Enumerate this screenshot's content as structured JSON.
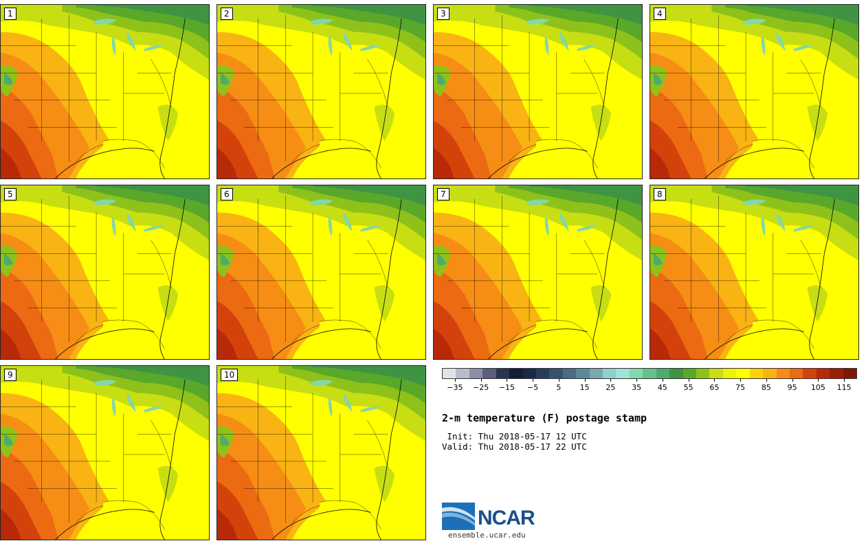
{
  "panels": [
    {
      "label": "1"
    },
    {
      "label": "2"
    },
    {
      "label": "3"
    },
    {
      "label": "4"
    },
    {
      "label": "5"
    },
    {
      "label": "6"
    },
    {
      "label": "7"
    },
    {
      "label": "8"
    },
    {
      "label": "9"
    },
    {
      "label": "10"
    }
  ],
  "colorbar": {
    "colors": [
      "#e1e3e8",
      "#b9bccb",
      "#8b8ea8",
      "#5a5f7d",
      "#2d3352",
      "#141c36",
      "#1a2a4a",
      "#263e5e",
      "#35536f",
      "#476c85",
      "#5d8a9a",
      "#77a9b1",
      "#8fd0cb",
      "#9fe5d5",
      "#82d7ab",
      "#66c08e",
      "#50a96f",
      "#3f9443",
      "#5aa82a",
      "#8ec21a",
      "#c7de12",
      "#ecf206",
      "#ffff00",
      "#fcd20b",
      "#f9b313",
      "#f68d14",
      "#eb6a12",
      "#d4420b",
      "#b82a07",
      "#9a1e05",
      "#7e1705"
    ],
    "tick_labels": [
      "−35",
      "−25",
      "−15",
      "−5",
      "5",
      "15",
      "25",
      "35",
      "45",
      "55",
      "65",
      "75",
      "85",
      "95",
      "105",
      "115"
    ]
  },
  "title": "2-m temperature (F) postage stamp",
  "init": " Init: Thu 2018-05-17 12 UTC",
  "valid": "Valid: Thu 2018-05-17 22 UTC",
  "logo": {
    "name": "ncar-logo",
    "text": "NCAR"
  },
  "site": "ensemble.ucar.edu"
}
